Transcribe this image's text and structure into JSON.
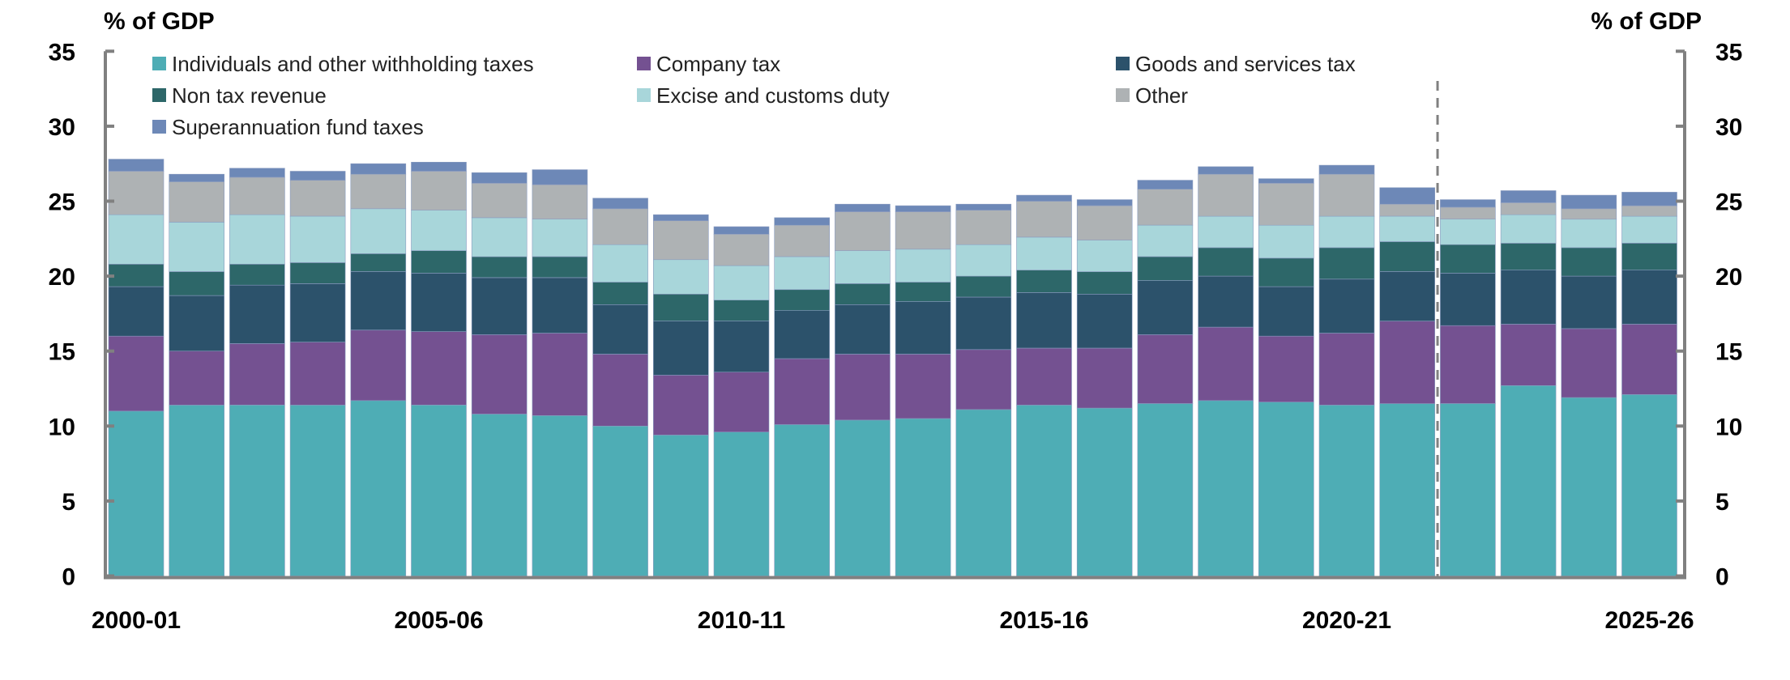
{
  "chart_data": {
    "type": "bar",
    "stacked": true,
    "title": "",
    "ylabel_left": "% of GDP",
    "ylabel_right": "% of GDP",
    "xlabel": "",
    "ylim": [
      0,
      35
    ],
    "yticks": [
      0,
      5,
      10,
      15,
      20,
      25,
      30,
      35
    ],
    "grid": false,
    "legend_position": "top-left (inside plot, 3 columns)",
    "categories": [
      "2000-01",
      "2001-02",
      "2002-03",
      "2003-04",
      "2004-05",
      "2005-06",
      "2006-07",
      "2007-08",
      "2008-09",
      "2009-10",
      "2010-11",
      "2011-12",
      "2012-13",
      "2013-14",
      "2014-15",
      "2015-16",
      "2016-17",
      "2017-18",
      "2018-19",
      "2019-20",
      "2020-21",
      "2021-22",
      "2022-23",
      "2023-24",
      "2024-25",
      "2025-26"
    ],
    "xtick_labels": [
      "2000-01",
      "2005-06",
      "2010-11",
      "2015-16",
      "2020-21",
      "2025-26"
    ],
    "forecast_divider_after": "2021-22",
    "series": [
      {
        "name": "Individuals and other withholding taxes",
        "color": "#4EADB5",
        "values": [
          11.0,
          11.4,
          11.4,
          11.4,
          11.7,
          11.4,
          10.8,
          10.7,
          10.0,
          9.4,
          9.6,
          10.1,
          10.4,
          10.5,
          11.1,
          11.4,
          11.2,
          11.5,
          11.7,
          11.6,
          11.4,
          11.5,
          11.5,
          12.7,
          11.9,
          12.1
        ]
      },
      {
        "name": "Company tax",
        "color": "#745191",
        "values": [
          5.0,
          3.6,
          4.1,
          4.2,
          4.7,
          4.9,
          5.3,
          5.5,
          4.8,
          4.0,
          4.0,
          4.4,
          4.4,
          4.3,
          4.0,
          3.8,
          4.0,
          4.6,
          4.9,
          4.4,
          4.8,
          5.5,
          5.2,
          4.1,
          4.6,
          4.7
        ]
      },
      {
        "name": "Goods and services tax",
        "color": "#2C526B",
        "values": [
          3.3,
          3.7,
          3.9,
          3.9,
          3.9,
          3.9,
          3.8,
          3.7,
          3.3,
          3.6,
          3.4,
          3.2,
          3.3,
          3.5,
          3.5,
          3.7,
          3.6,
          3.6,
          3.4,
          3.3,
          3.6,
          3.3,
          3.5,
          3.6,
          3.5,
          3.6
        ]
      },
      {
        "name": "Non tax revenue",
        "color": "#2D6769",
        "values": [
          1.5,
          1.6,
          1.4,
          1.4,
          1.2,
          1.5,
          1.4,
          1.4,
          1.5,
          1.8,
          1.4,
          1.4,
          1.4,
          1.3,
          1.4,
          1.5,
          1.5,
          1.6,
          1.9,
          1.9,
          2.1,
          2.0,
          1.9,
          1.8,
          1.9,
          1.8
        ]
      },
      {
        "name": "Excise and customs duty",
        "color": "#A8D6DA",
        "values": [
          3.3,
          3.3,
          3.3,
          3.1,
          3.0,
          2.7,
          2.6,
          2.5,
          2.5,
          2.3,
          2.3,
          2.2,
          2.2,
          2.2,
          2.1,
          2.2,
          2.1,
          2.1,
          2.1,
          2.2,
          2.1,
          1.7,
          1.7,
          1.9,
          1.9,
          1.8
        ]
      },
      {
        "name": "Other",
        "color": "#AEB2B4",
        "values": [
          2.9,
          2.7,
          2.5,
          2.4,
          2.3,
          2.6,
          2.3,
          2.3,
          2.4,
          2.6,
          2.1,
          2.1,
          2.6,
          2.5,
          2.3,
          2.4,
          2.3,
          2.4,
          2.8,
          2.8,
          2.8,
          0.8,
          0.8,
          0.8,
          0.7,
          0.7
        ]
      },
      {
        "name": "Superannuation fund taxes",
        "color": "#6D88B7",
        "values": [
          0.8,
          0.5,
          0.6,
          0.6,
          0.7,
          0.6,
          0.7,
          1.0,
          0.7,
          0.4,
          0.5,
          0.5,
          0.5,
          0.4,
          0.4,
          0.4,
          0.4,
          0.6,
          0.5,
          0.3,
          0.6,
          1.1,
          0.5,
          0.8,
          0.9,
          0.9
        ]
      }
    ],
    "legend_order": [
      0,
      1,
      2,
      3,
      4,
      5,
      6
    ],
    "colors": {
      "axis": "#808080",
      "divider": "#808080"
    }
  }
}
